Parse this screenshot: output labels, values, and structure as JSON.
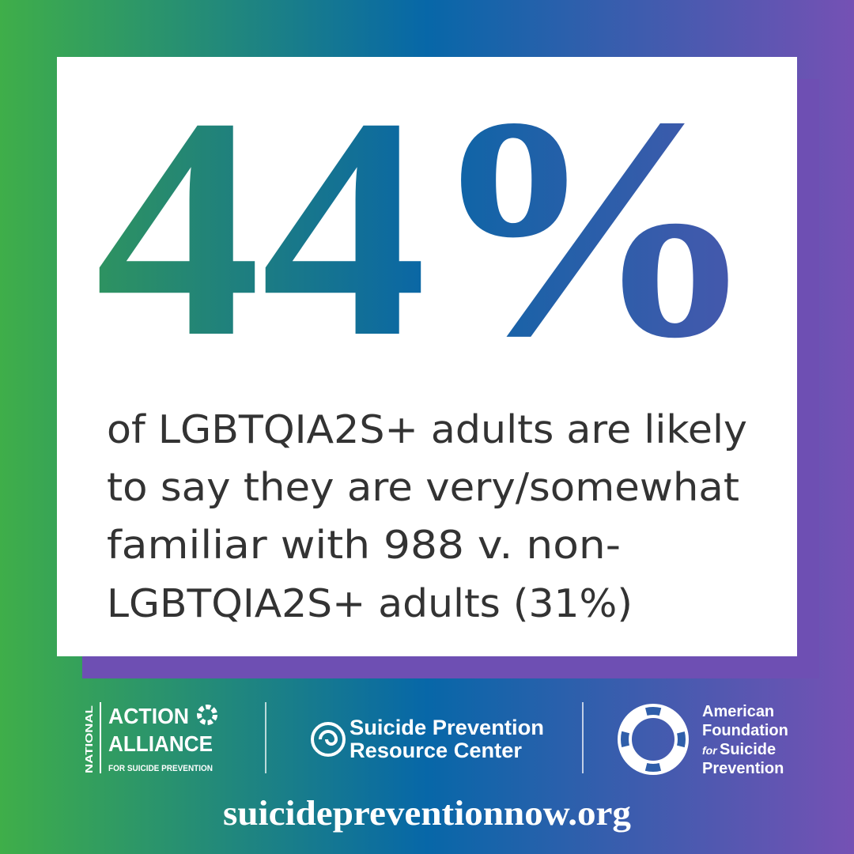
{
  "headline": {
    "stat": "44%"
  },
  "body": {
    "lines": [
      "of LGBTQIA2S+ adults are likely",
      "to say they are very/somewhat",
      "familiar with 988 v. non-",
      "LGBTQIA2S+ adults (31%)"
    ]
  },
  "logos": {
    "action_alliance": {
      "side": "NATIONAL",
      "line1": "ACTION",
      "line2": "ALLIANCE",
      "tagline": "FOR SUICIDE PREVENTION"
    },
    "sprc": {
      "line1": "Suicide Prevention",
      "line2": "Resource Center"
    },
    "afsp": {
      "line1": "American",
      "line2": "Foundation",
      "for": "for",
      "line3": "Suicide",
      "line4": "Prevention"
    }
  },
  "footer": {
    "url": "suicidepreventionnow.org"
  }
}
